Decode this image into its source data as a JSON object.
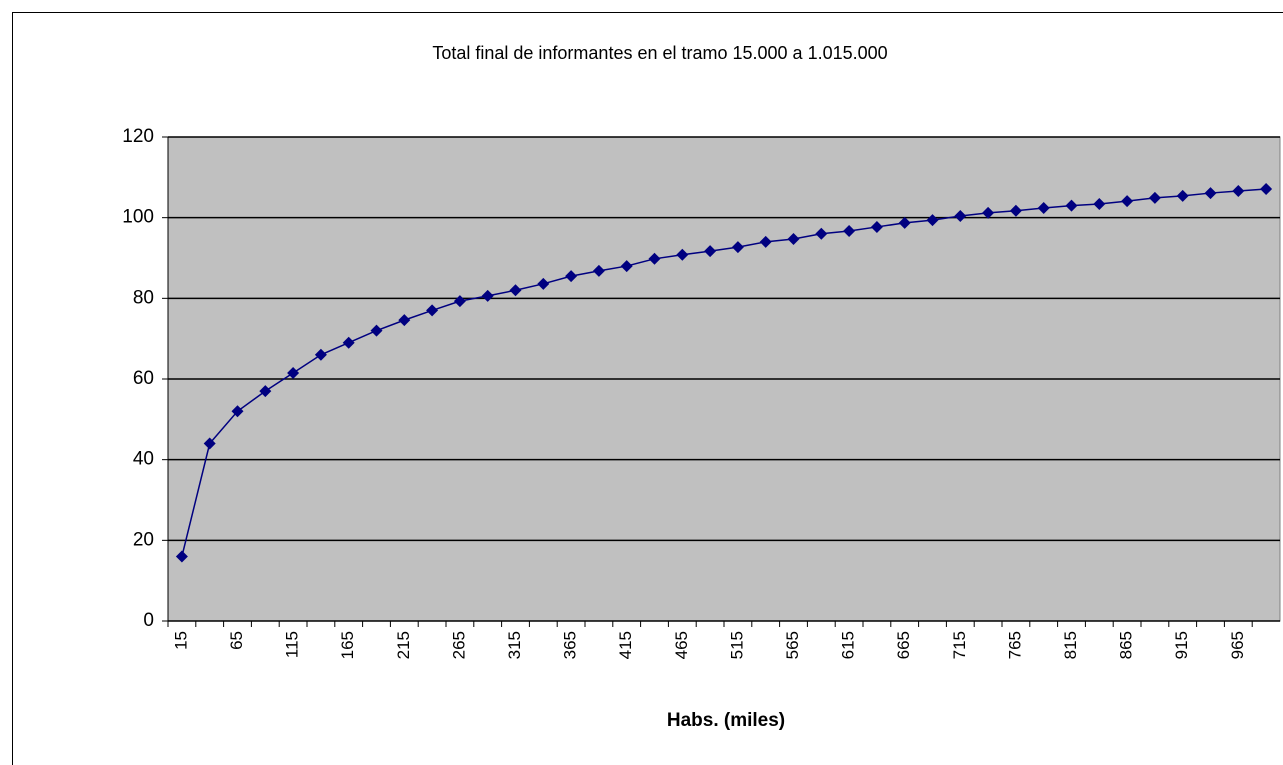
{
  "chart_data": {
    "type": "line",
    "title": "Total final de informantes en el tramo 15.000 a 1.015.000",
    "x_label": "Habs. (miles)",
    "categories": [
      "15",
      null,
      "65",
      null,
      "115",
      null,
      "165",
      null,
      "215",
      null,
      "265",
      null,
      "315",
      null,
      "365",
      null,
      "415",
      null,
      "465",
      null,
      "515",
      null,
      "565",
      null,
      "615",
      null,
      "665",
      null,
      "715",
      null,
      "765",
      null,
      "815",
      null,
      "865",
      null,
      "915",
      null,
      "965",
      null
    ],
    "series": [
      {
        "name": "Total final de informantes",
        "color": "#000080",
        "values": [
          16,
          44,
          52,
          57,
          61.5,
          66,
          69,
          72,
          74.6,
          77,
          79.3,
          80.6,
          82,
          83.6,
          85.5,
          86.8,
          88,
          89.8,
          90.8,
          91.7,
          92.7,
          94,
          94.7,
          96,
          96.7,
          97.7,
          98.7,
          99.4,
          100.4,
          101.2,
          101.7,
          102.4,
          103,
          103.4,
          104.1,
          104.9,
          105.4,
          106.1,
          106.6,
          107.1
        ]
      }
    ],
    "ylim": [
      0,
      120
    ],
    "yticks": [
      0,
      20,
      40,
      60,
      80,
      100,
      120
    ],
    "grid": true,
    "plot_background": "#c0c0c0"
  }
}
